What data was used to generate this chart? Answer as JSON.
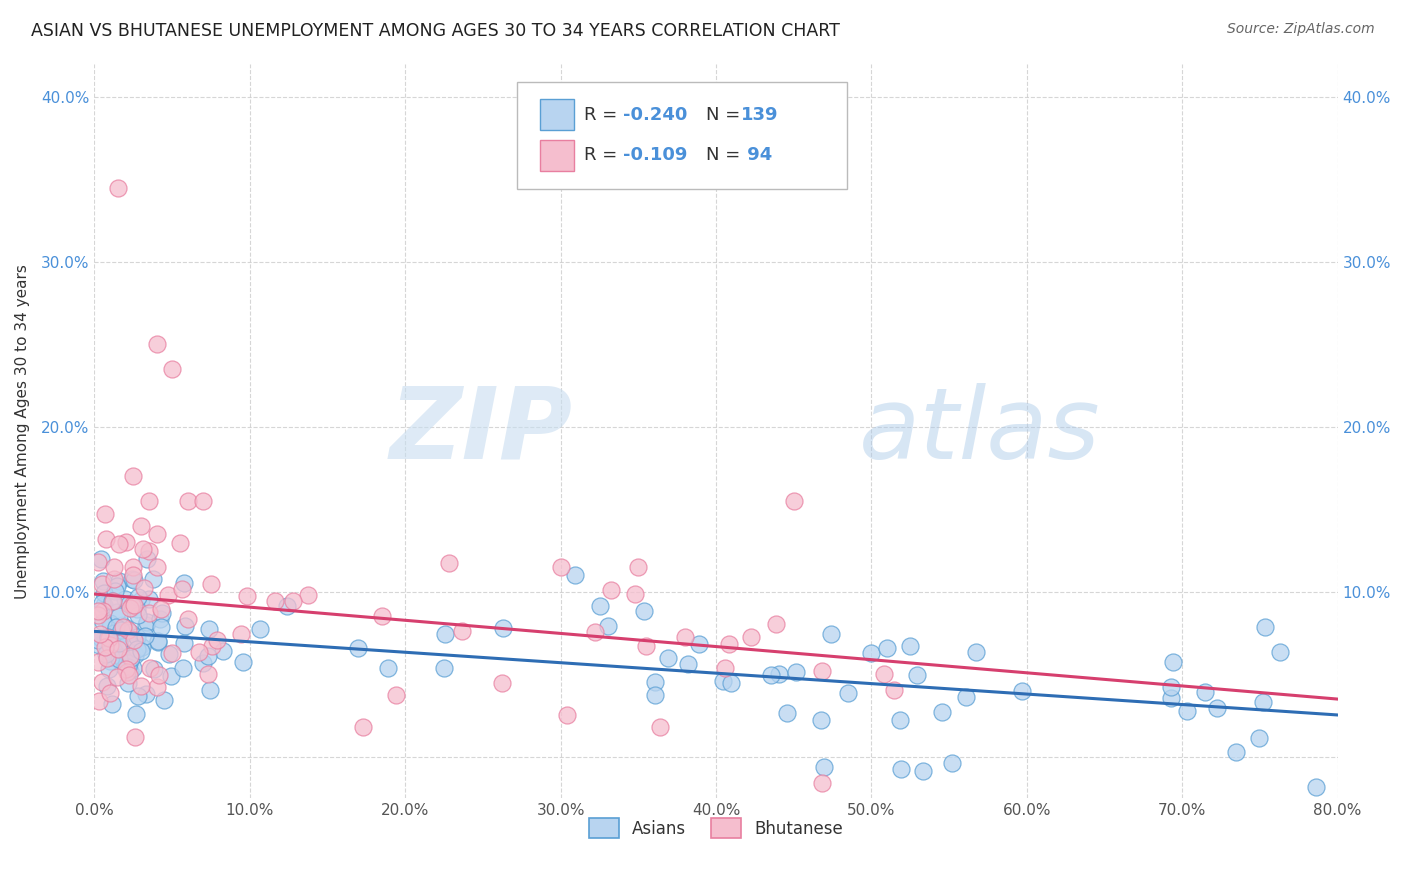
{
  "title": "ASIAN VS BHUTANESE UNEMPLOYMENT AMONG AGES 30 TO 34 YEARS CORRELATION CHART",
  "source": "Source: ZipAtlas.com",
  "ylabel": "Unemployment Among Ages 30 to 34 years",
  "xlim": [
    0.0,
    0.8
  ],
  "ylim": [
    -0.025,
    0.42
  ],
  "xticks": [
    0.0,
    0.1,
    0.2,
    0.3,
    0.4,
    0.5,
    0.6,
    0.7,
    0.8
  ],
  "yticks": [
    0.0,
    0.1,
    0.2,
    0.3,
    0.4
  ],
  "ytick_labels_left": [
    "",
    "10.0%",
    "20.0%",
    "30.0%",
    "40.0%"
  ],
  "ytick_labels_right": [
    "10.0%",
    "20.0%",
    "30.0%",
    "40.0%"
  ],
  "xtick_labels": [
    "0.0%",
    "10.0%",
    "20.0%",
    "30.0%",
    "40.0%",
    "50.0%",
    "60.0%",
    "70.0%",
    "80.0%"
  ],
  "asian_color": "#b8d4f0",
  "asian_edge_color": "#5a9fd4",
  "bhutanese_color": "#f5bece",
  "bhutanese_edge_color": "#e87fa0",
  "asian_line_color": "#2e6db4",
  "bhutanese_line_color": "#d63f6e",
  "legend_asian_label": "Asians",
  "legend_bhutanese_label": "Bhutanese",
  "R_asian": -0.24,
  "N_asian": 139,
  "R_bhutanese": -0.109,
  "N_bhutanese": 94,
  "watermark_zip": "ZIP",
  "watermark_atlas": "atlas",
  "background_color": "#ffffff",
  "grid_color": "#cccccc",
  "tick_color": "#4a90d9",
  "legend_text_color": "#4a90d9"
}
